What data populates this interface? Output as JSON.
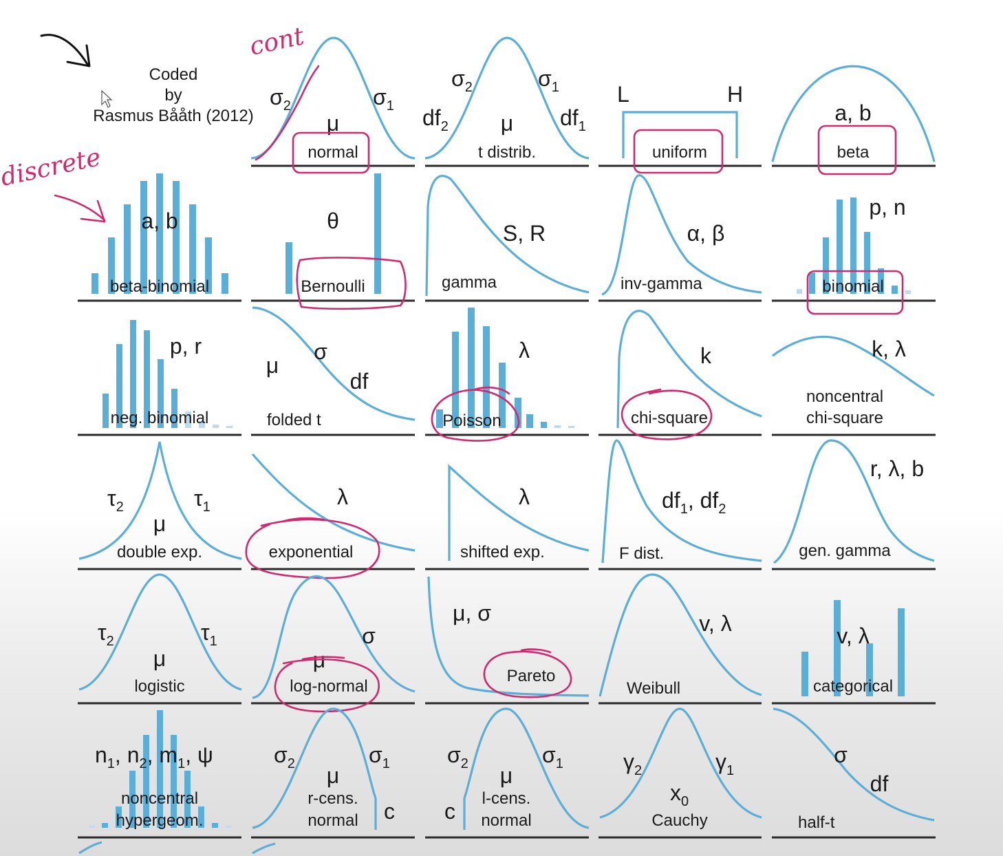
{
  "credit": {
    "line1": "Coded",
    "line2": "by",
    "line3": "Rasmus Bååth (2012)"
  },
  "annotations": {
    "continuous": "cont",
    "discrete": "discrete"
  },
  "cells": [
    {
      "id": "normal",
      "label": "normal",
      "params": [
        "σ",
        "2",
        "σ",
        "1",
        "μ"
      ],
      "circled": true
    },
    {
      "id": "t",
      "label": "t distrib.",
      "params": [
        "σ",
        "2",
        "σ",
        "1",
        "df",
        "2",
        "df",
        "1",
        "μ"
      ],
      "circled": false
    },
    {
      "id": "uniform",
      "label": "uniform",
      "params": [
        "L",
        "H"
      ],
      "circled": true
    },
    {
      "id": "beta",
      "label": "beta",
      "params": [
        "a, b"
      ],
      "circled": true
    },
    {
      "id": "beta-binomial",
      "label": "beta-binomial",
      "params": [
        "a, b"
      ],
      "circled": false
    },
    {
      "id": "bernoulli",
      "label": "Bernoulli",
      "params": [
        "θ"
      ],
      "circled": true
    },
    {
      "id": "gamma",
      "label": "gamma",
      "params": [
        "S, R"
      ],
      "circled": false
    },
    {
      "id": "inv-gamma",
      "label": "inv-gamma",
      "params": [
        "α, β"
      ],
      "circled": false
    },
    {
      "id": "binomial",
      "label": "binomial",
      "params": [
        "p, n"
      ],
      "circled": true
    },
    {
      "id": "neg-binomial",
      "label": "neg. binomial",
      "params": [
        "p, r"
      ],
      "circled": false
    },
    {
      "id": "folded-t",
      "label": "folded t",
      "params": [
        "μ",
        "σ",
        "df"
      ],
      "circled": false
    },
    {
      "id": "poisson",
      "label": "Poisson",
      "params": [
        "λ"
      ],
      "circled": true
    },
    {
      "id": "chi-square",
      "label": "chi-square",
      "params": [
        "k"
      ],
      "circled": true
    },
    {
      "id": "noncentral-chi-square",
      "label": "noncentral",
      "label2": "chi-square",
      "params": [
        "k, λ"
      ],
      "circled": false
    },
    {
      "id": "double-exp",
      "label": "double exp.",
      "params": [
        "τ",
        "2",
        "τ",
        "1",
        "μ"
      ],
      "circled": false
    },
    {
      "id": "exponential",
      "label": "exponential",
      "params": [
        "λ"
      ],
      "circled": true
    },
    {
      "id": "shifted-exp",
      "label": "shifted exp.",
      "params": [
        "λ"
      ],
      "circled": false
    },
    {
      "id": "f-dist",
      "label": "F dist.",
      "params": [
        "df",
        "1",
        ", df",
        "2"
      ],
      "circled": false
    },
    {
      "id": "gen-gamma",
      "label": "gen. gamma",
      "params": [
        "r, λ, b"
      ],
      "circled": false
    },
    {
      "id": "logistic",
      "label": "logistic",
      "params": [
        "τ",
        "2",
        "τ",
        "1",
        "μ"
      ],
      "circled": false
    },
    {
      "id": "log-normal",
      "label": "log-normal",
      "params": [
        "μ",
        "σ"
      ],
      "circled": true
    },
    {
      "id": "pareto",
      "label": "Pareto",
      "params": [
        "μ, σ"
      ],
      "circled": true
    },
    {
      "id": "weibull",
      "label": "Weibull",
      "params": [
        "v, λ"
      ],
      "circled": false
    },
    {
      "id": "categorical",
      "label": "categorical",
      "params": [
        "v, λ"
      ],
      "circled": false
    },
    {
      "id": "noncentral-hypergeom",
      "label": "noncentral",
      "label2": "hypergeom.",
      "params": [
        "n",
        "1",
        ", n",
        "2",
        ", m",
        "1",
        ", ψ"
      ],
      "circled": false
    },
    {
      "id": "r-cens-normal",
      "label": "r-cens.",
      "label2": "normal",
      "params": [
        "σ",
        "2",
        "σ",
        "1",
        "μ",
        "c"
      ],
      "circled": false
    },
    {
      "id": "l-cens-normal",
      "label": "l-cens.",
      "label2": "normal",
      "params": [
        "σ",
        "2",
        "σ",
        "1",
        "μ",
        "c"
      ],
      "circled": false
    },
    {
      "id": "cauchy",
      "label": "Cauchy",
      "params": [
        "γ",
        "2",
        "γ",
        "1",
        "x",
        "0"
      ],
      "circled": false
    },
    {
      "id": "half-t",
      "label": "half-t",
      "params": [
        "σ",
        "df"
      ],
      "circled": false
    }
  ],
  "colors": {
    "curve": "#5aaed8",
    "ink": "#d2286e",
    "baseline": "#2a2a2a"
  }
}
